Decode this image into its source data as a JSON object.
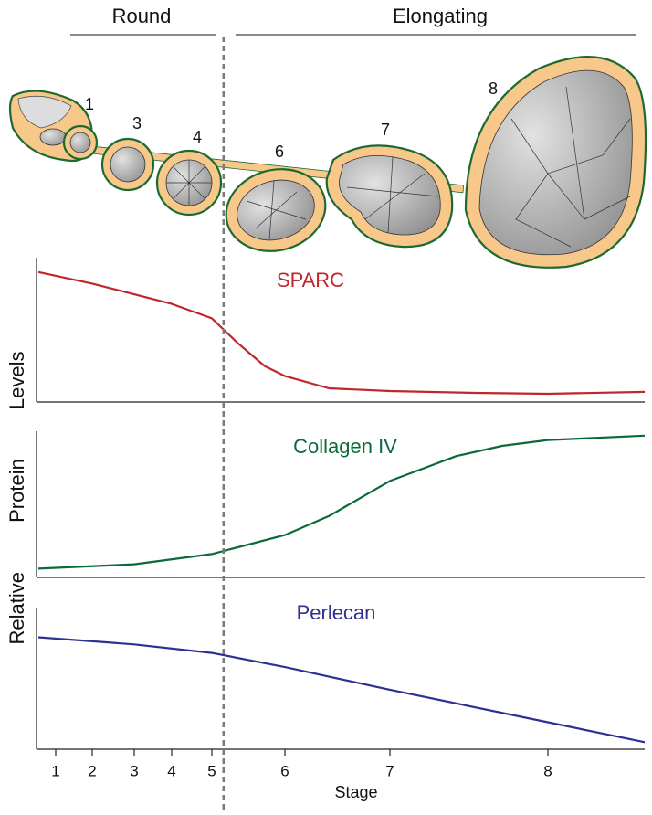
{
  "header": {
    "round": "Round",
    "elongating": "Elongating"
  },
  "egg_chambers": [
    "1",
    "3",
    "4",
    "6",
    "7",
    "8"
  ],
  "y_label": "Relative Protein Levels",
  "stage_boundary": 5.16,
  "chart_data": [
    {
      "type": "line",
      "xlim": [
        0.5,
        8.6
      ],
      "ylim": [
        0,
        1
      ],
      "x": [
        0.5,
        2,
        4,
        5,
        5.35,
        5.72,
        6,
        6.42,
        7,
        7.54,
        8,
        8.6
      ],
      "series": [
        {
          "name": "SPARC",
          "color": "#c0272d",
          "values": [
            0.9,
            0.82,
            0.68,
            0.58,
            0.41,
            0.25,
            0.18,
            0.095,
            0.076,
            0.063,
            0.057,
            0.07
          ]
        }
      ]
    },
    {
      "type": "line",
      "xlim": [
        0.5,
        8.6
      ],
      "ylim": [
        0,
        1
      ],
      "x": [
        0.5,
        3,
        5,
        6,
        6.42,
        7,
        7.42,
        7.71,
        8,
        8.6
      ],
      "series": [
        {
          "name": "Collagen IV",
          "color": "#0a6b3a",
          "values": [
            0.06,
            0.09,
            0.16,
            0.29,
            0.42,
            0.66,
            0.83,
            0.9,
            0.94,
            0.97
          ]
        }
      ]
    },
    {
      "type": "line",
      "xlim": [
        0.5,
        8.6
      ],
      "ylim": [
        0,
        1
      ],
      "x": [
        0.5,
        3,
        5,
        6,
        7,
        8,
        8.6
      ],
      "series": [
        {
          "name": "Perlecan",
          "color": "#2e3192",
          "values": [
            0.79,
            0.74,
            0.68,
            0.58,
            0.42,
            0.19,
            0.05
          ]
        }
      ],
      "xticks": [
        1,
        2,
        3,
        4,
        5,
        6,
        7,
        8
      ],
      "x_label": "Stage"
    }
  ]
}
